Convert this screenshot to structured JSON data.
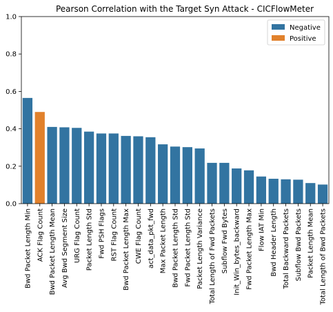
{
  "colors": {
    "negative": "#3274a1",
    "positive": "#e1812c",
    "background": "#ffffff",
    "axis": "#000000"
  },
  "chart_data": {
    "type": "bar",
    "title": "Pearson Correlation with the Target Syn Attack - CICFlowMeter",
    "xlabel": "",
    "ylabel": "",
    "ylim": [
      0,
      1.0
    ],
    "yticks": [
      "0.0",
      "0.2",
      "0.4",
      "0.6",
      "0.8",
      "1.0"
    ],
    "grid": false,
    "legend_position": "top-right",
    "legend": [
      {
        "label": "Negative",
        "color": "#3274a1"
      },
      {
        "label": "Positive",
        "color": "#e1812c"
      }
    ],
    "categories": [
      "Bwd Packet Length Min",
      "ACK Flag Count",
      "Bwd Packet Length Mean",
      "Avg Bwd Segment Size",
      "URG Flag Count",
      "Packet Length Std",
      "Fwd PSH Flags",
      "RST Flag Count",
      "Bwd Packet Length Max",
      "CWE Flag Count",
      "act_data_pkt_fwd",
      "Max Packet Length",
      "Bwd Packet Length Std",
      "Fwd Packet Length Std",
      "Packet Length Variance",
      "Total Length of Fwd Packets",
      "Subflow Fwd Bytes",
      "Init_Win_bytes_backward",
      "Fwd Packet Length Max",
      "Flow IAT Min",
      "Bwd Header Length",
      "Total Backward Packets",
      "Subflow Bwd Packets",
      "Packet Length Mean",
      "Total Length of Bwd Packets"
    ],
    "values": [
      0.565,
      0.49,
      0.41,
      0.408,
      0.405,
      0.385,
      0.375,
      0.375,
      0.362,
      0.36,
      0.355,
      0.317,
      0.305,
      0.302,
      0.295,
      0.218,
      0.218,
      0.188,
      0.178,
      0.145,
      0.133,
      0.13,
      0.128,
      0.11,
      0.102
    ],
    "signs": [
      "Negative",
      "Positive",
      "Negative",
      "Negative",
      "Negative",
      "Negative",
      "Negative",
      "Negative",
      "Negative",
      "Negative",
      "Negative",
      "Negative",
      "Negative",
      "Negative",
      "Negative",
      "Negative",
      "Negative",
      "Negative",
      "Negative",
      "Negative",
      "Negative",
      "Negative",
      "Negative",
      "Negative",
      "Negative"
    ]
  }
}
